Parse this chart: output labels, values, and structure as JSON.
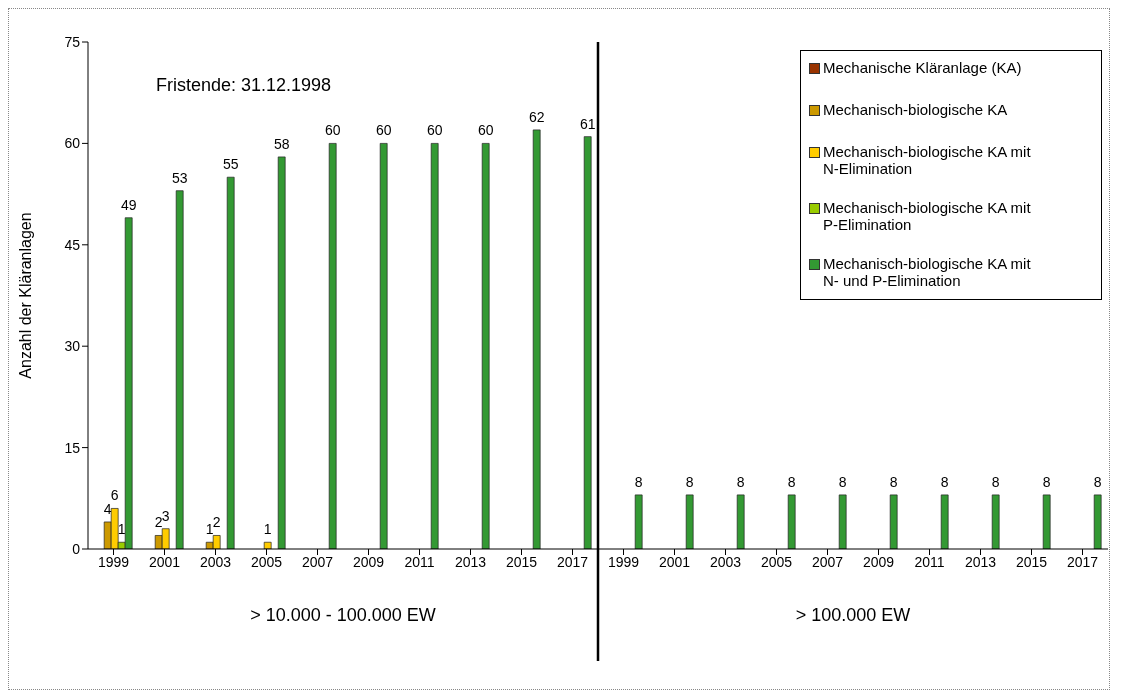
{
  "chart_data": {
    "type": "bar",
    "ylabel": "Anzahl der Kläranlagen",
    "categories": [
      "1999",
      "2001",
      "2003",
      "2005",
      "2007",
      "2009",
      "2011",
      "2013",
      "2015",
      "2017",
      "1999",
      "2001",
      "2003",
      "2005",
      "2007",
      "2009",
      "2011",
      "2013",
      "2015",
      "2017"
    ],
    "series": [
      {
        "name": "Mechanische Kläranlage (KA)",
        "color": "#993300",
        "values": [
          0,
          0,
          0,
          0,
          0,
          0,
          0,
          0,
          0,
          0,
          0,
          0,
          0,
          0,
          0,
          0,
          0,
          0,
          0,
          0
        ],
        "value_labels": [
          null,
          null,
          null,
          null,
          null,
          null,
          null,
          null,
          null,
          null,
          null,
          null,
          null,
          null,
          null,
          null,
          null,
          null,
          null,
          null
        ]
      },
      {
        "name": "Mechanisch-biologische KA",
        "color": "#cc9900",
        "values": [
          4,
          2,
          1,
          0,
          0,
          0,
          0,
          0,
          0,
          0,
          0,
          0,
          0,
          0,
          0,
          0,
          0,
          0,
          0,
          0
        ],
        "value_labels": [
          "4",
          "2",
          "1",
          null,
          null,
          null,
          null,
          null,
          null,
          null,
          null,
          null,
          null,
          null,
          null,
          null,
          null,
          null,
          null,
          null
        ]
      },
      {
        "name": "Mechanisch-biologische KA mit N-Elimination",
        "color": "#ffcc00",
        "values": [
          6,
          3,
          2,
          1,
          0,
          0,
          0,
          0,
          0,
          0,
          0,
          0,
          0,
          0,
          0,
          0,
          0,
          0,
          0,
          0
        ],
        "value_labels": [
          "6",
          "3",
          "2",
          "1",
          null,
          null,
          null,
          null,
          null,
          null,
          null,
          null,
          null,
          null,
          null,
          null,
          null,
          null,
          null,
          null
        ]
      },
      {
        "name": "Mechanisch-biologische KA mit P-Elimination",
        "color": "#99cc00",
        "values": [
          1,
          0,
          0,
          0,
          0,
          0,
          0,
          0,
          0,
          0,
          0,
          0,
          0,
          0,
          0,
          0,
          0,
          0,
          0,
          0
        ],
        "value_labels": [
          "1",
          null,
          null,
          null,
          null,
          null,
          null,
          null,
          null,
          null,
          null,
          null,
          null,
          null,
          null,
          null,
          null,
          null,
          null,
          null
        ]
      },
      {
        "name": "Mechanisch-biologische KA mit N- und P-Elimination",
        "color": "#339933",
        "values": [
          49,
          53,
          55,
          58,
          60,
          60,
          60,
          60,
          62,
          61,
          8,
          8,
          8,
          8,
          8,
          8,
          8,
          8,
          8,
          8
        ],
        "value_labels": [
          "49",
          "53",
          "55",
          "58",
          "60",
          "60",
          "60",
          "60",
          "62",
          "61",
          "8",
          "8",
          "8",
          "8",
          "8",
          "8",
          "8",
          "8",
          "8",
          "8"
        ]
      }
    ],
    "ylim": [
      0,
      75
    ],
    "yticks": [
      0,
      15,
      30,
      45,
      60,
      75
    ],
    "legend": "top right",
    "annotations": [
      "Fristende: 31.12.1998",
      "> 10.000 - 100.000 EW",
      "> 100.000 EW"
    ]
  }
}
